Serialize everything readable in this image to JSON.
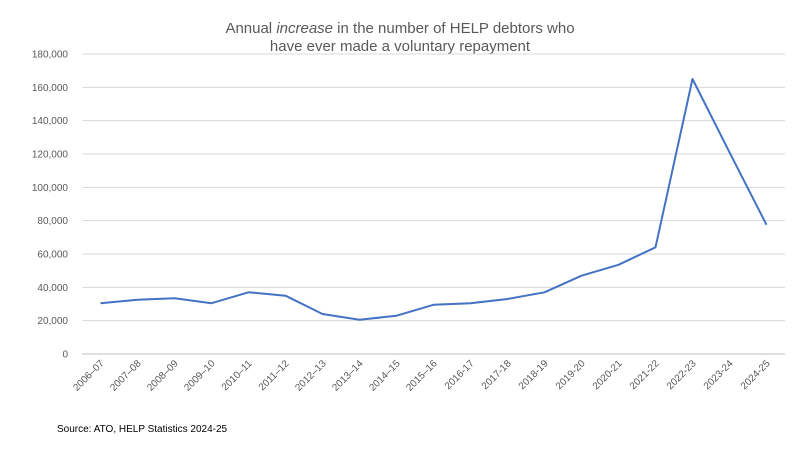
{
  "chart_data": {
    "type": "line",
    "title": {
      "line1_before": "Annual ",
      "line1_emphasis": "increase",
      "line1_after": " in the number of HELP debtors who",
      "line2": "have ever made a voluntary repayment"
    },
    "categories": [
      "2006–07",
      "2007–08",
      "2008–09",
      "2009–10",
      "2010–11",
      "2011–12",
      "2012–13",
      "2013–14",
      "2014–15",
      "2015–16",
      "2016-17",
      "2017-18",
      "2018-19",
      "2019-20",
      "2020-21",
      "2021-22",
      "2022-23",
      "2023-24",
      "2024-25"
    ],
    "series": [
      {
        "name": "Annual increase in HELP debtors who have ever made a voluntary repayment",
        "values": [
          30500,
          32500,
          33500,
          30500,
          37000,
          35000,
          24000,
          20500,
          23000,
          29500,
          30500,
          33000,
          37000,
          47000,
          53500,
          64000,
          165000,
          121000,
          77500
        ],
        "color": "#4472C4"
      }
    ],
    "y_ticks": [
      0,
      20000,
      40000,
      60000,
      80000,
      100000,
      120000,
      140000,
      160000,
      180000
    ],
    "y_tick_labels": [
      "0",
      "20,000",
      "40,000",
      "60,000",
      "80,000",
      "100,000",
      "120,000",
      "140,000",
      "160,000",
      "180,000"
    ],
    "ylim": [
      0,
      180000
    ],
    "xlabel": "",
    "ylabel": "",
    "grid": true,
    "legend": "none",
    "source": "Source: ATO, HELP Statistics 2024-25"
  }
}
